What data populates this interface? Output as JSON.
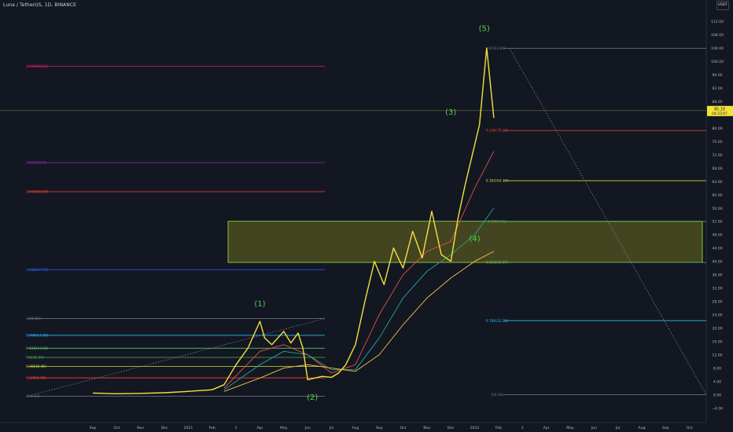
{
  "header": {
    "symbol": "Luna / TetherUS, 1D, BINANCE",
    "currency": "USDT"
  },
  "colors": {
    "background": "#131722",
    "price": "#f4e23a",
    "ma_fast": "#e0514d",
    "ma_mid": "#26a69a",
    "ma_slow": "#f5c342",
    "wave_label": "#4cd44c",
    "zone_fill": "#6a6b1e",
    "zone_stroke": "#9be04b",
    "axis_text": "#b2b5be",
    "current_price_bg": "#f4e23a"
  },
  "chart_data": {
    "type": "line",
    "title": "Luna / TetherUS, 1D, BINANCE",
    "xlabel": "",
    "ylabel": "",
    "ylim": [
      -6,
      116
    ],
    "grid": false,
    "x_ticks": [
      "Sep",
      "Oct",
      "Nov",
      "Dec",
      "2021",
      "Feb",
      "2",
      "Apr",
      "May",
      "Jun",
      "Jul",
      "Aug",
      "Sep",
      "Oct",
      "Nov",
      "Dec",
      "2022",
      "Feb",
      "2",
      "Apr",
      "May",
      "Jun",
      "Jul",
      "Aug",
      "Sep",
      "Oct"
    ],
    "y_ticks": [
      "112.00",
      "108.00",
      "104.00",
      "100.00",
      "96.00",
      "92.00",
      "88.00",
      "84.00",
      "80.00",
      "76.00",
      "72.00",
      "68.00",
      "64.00",
      "60.00",
      "56.00",
      "52.00",
      "48.00",
      "44.00",
      "40.00",
      "36.00",
      "32.00",
      "28.00",
      "24.00",
      "20.00",
      "16.00",
      "12.00",
      "8.00",
      "4.00",
      "0.00",
      "−4.00"
    ],
    "series": [
      {
        "name": "",
        "x": [
          0.0,
          1.0,
          2.0,
          3.0,
          4.0,
          5.0,
          5.5,
          6.0,
          6.5,
          7.0,
          7.2,
          7.5,
          8.0,
          8.3,
          8.6,
          8.8,
          9.0,
          9.3,
          9.6,
          10.0,
          10.3,
          10.6,
          11.0,
          11.4,
          11.8,
          12.2,
          12.6,
          13.0,
          13.4,
          13.8,
          14.2,
          14.6,
          15.0,
          15.3,
          15.6,
          15.9,
          16.2,
          16.5,
          16.8
        ],
        "y": [
          0.5,
          0.3,
          0.4,
          0.6,
          1.0,
          1.5,
          3.0,
          9.0,
          14.0,
          22.0,
          17.0,
          15.0,
          19.0,
          15.5,
          18.5,
          14.0,
          4.5,
          5.0,
          5.5,
          5.2,
          6.5,
          9.0,
          15.0,
          28.0,
          40.0,
          33.0,
          44.0,
          38.0,
          49.0,
          41.0,
          55.0,
          42.0,
          40.0,
          53.0,
          63.0,
          72.0,
          81.0,
          104.0,
          83.0
        ]
      },
      {
        "name": "",
        "x": [
          5.5,
          7.0,
          8.0,
          9.0,
          10.0,
          11.0,
          12.0,
          13.0,
          14.0,
          15.0,
          16.0,
          16.8
        ],
        "y": [
          2.0,
          13.0,
          15.0,
          12.0,
          6.5,
          9.0,
          24.0,
          36.0,
          43.0,
          46.0,
          62.0,
          73.0
        ]
      },
      {
        "name": "",
        "x": [
          5.5,
          7.0,
          8.0,
          9.0,
          10.0,
          11.0,
          12.0,
          13.0,
          14.0,
          15.0,
          16.0,
          16.8
        ],
        "y": [
          1.5,
          9.0,
          13.0,
          12.0,
          7.5,
          7.5,
          17.0,
          29.0,
          37.0,
          42.0,
          48.0,
          56.0
        ]
      },
      {
        "name": "",
        "x": [
          5.5,
          7.0,
          8.0,
          9.0,
          10.0,
          11.0,
          12.0,
          13.0,
          14.0,
          15.0,
          16.0,
          16.8
        ],
        "y": [
          1.0,
          5.0,
          8.0,
          9.0,
          8.0,
          7.0,
          12.0,
          21.0,
          29.0,
          35.0,
          40.0,
          43.0
        ]
      }
    ],
    "current_price": {
      "label": "85.19",
      "sub_label": "04:23:07",
      "y": 85.19
    },
    "fib_extension_left": [
      {
        "label": "4.236(98.52)",
        "y": 98.52,
        "color": "#e91e63"
      },
      {
        "label": "3.618(69.6)",
        "y": 69.6,
        "color": "#9c27b0"
      },
      {
        "label": "2.618(60.89)",
        "y": 60.89,
        "color": "#f44336"
      },
      {
        "label": "1.618(37.52)",
        "y": 37.52,
        "color": "#2962ff"
      }
    ],
    "fib_retracement_left": [
      {
        "label": "1(22.83)",
        "y": 22.83,
        "color": "#787b86"
      },
      {
        "label": "0.786(17.80)",
        "y": 17.8,
        "color": "#29b6f6"
      },
      {
        "label": "0.618(13.94)",
        "y": 13.94,
        "color": "#66bb6a"
      },
      {
        "label": "0.5(11.20)",
        "y": 11.2,
        "color": "#4caf50"
      },
      {
        "label": "0.382(8.45)",
        "y": 8.45,
        "color": "#cddc39"
      },
      {
        "label": "0.236(5.05)",
        "y": 5.05,
        "color": "#f44336"
      },
      {
        "label": "0(-0.43)",
        "y": -0.43,
        "color": "#787b86"
      }
    ],
    "fib_retracement_right": [
      {
        "label": "0(103.84)",
        "y": 103.84,
        "color": "#787b86"
      },
      {
        "label": "0.236(79.23)",
        "y": 79.23,
        "color": "#f44336"
      },
      {
        "label": "0.382(64.17)",
        "y": 64.17,
        "color": "#cddc39"
      },
      {
        "label": "0.5(51.92)",
        "y": 51.92,
        "color": "#4caf50"
      },
      {
        "label": "0.618(39.67)",
        "y": 39.67,
        "color": "#66bb6a"
      },
      {
        "label": "0.786(22.22)",
        "y": 22.22,
        "color": "#29b6f6"
      },
      {
        "label": "1(0.00)",
        "y": 0.0,
        "color": "#787b86"
      }
    ],
    "zone": {
      "y_top": 52.0,
      "y_bottom": 39.67
    },
    "wave_labels": [
      {
        "text": "(1)",
        "x": 7.0,
        "y": 26.5
      },
      {
        "text": "(2)",
        "x": 9.2,
        "y": -1.5
      },
      {
        "text": "(3)",
        "x": 15.0,
        "y": 84.0
      },
      {
        "text": "(4)",
        "x": 16.0,
        "y": 46.0
      },
      {
        "text": "(5)",
        "x": 16.4,
        "y": 109.0
      }
    ]
  }
}
